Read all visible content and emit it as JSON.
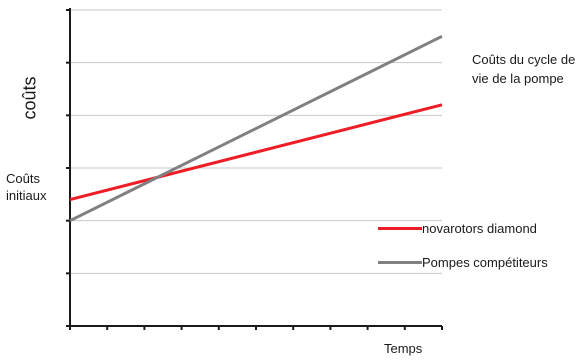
{
  "chart_data": {
    "type": "line",
    "title": "",
    "xlabel": "Temps",
    "ylabel": "coûts",
    "x": [
      0,
      10
    ],
    "xlim": [
      0,
      10
    ],
    "ylim": [
      0,
      6
    ],
    "y_ticks": [
      0,
      1,
      2,
      3,
      4,
      5,
      6
    ],
    "x_ticks": [
      0,
      1,
      2,
      3,
      4,
      5,
      6,
      7,
      8,
      9,
      10
    ],
    "grid": true,
    "legend_position": "right",
    "series": [
      {
        "name": "novarotors diamond",
        "color": "#ee1c25",
        "values": [
          2.4,
          4.2
        ]
      },
      {
        "name": "Pompes compétiteurs",
        "color": "#808080",
        "values": [
          2.0,
          5.5
        ]
      }
    ],
    "annotations": {
      "initial_costs": "Coûts initiaux",
      "lifecycle_costs": "Coûts du cycle de vie de la pompe"
    }
  }
}
